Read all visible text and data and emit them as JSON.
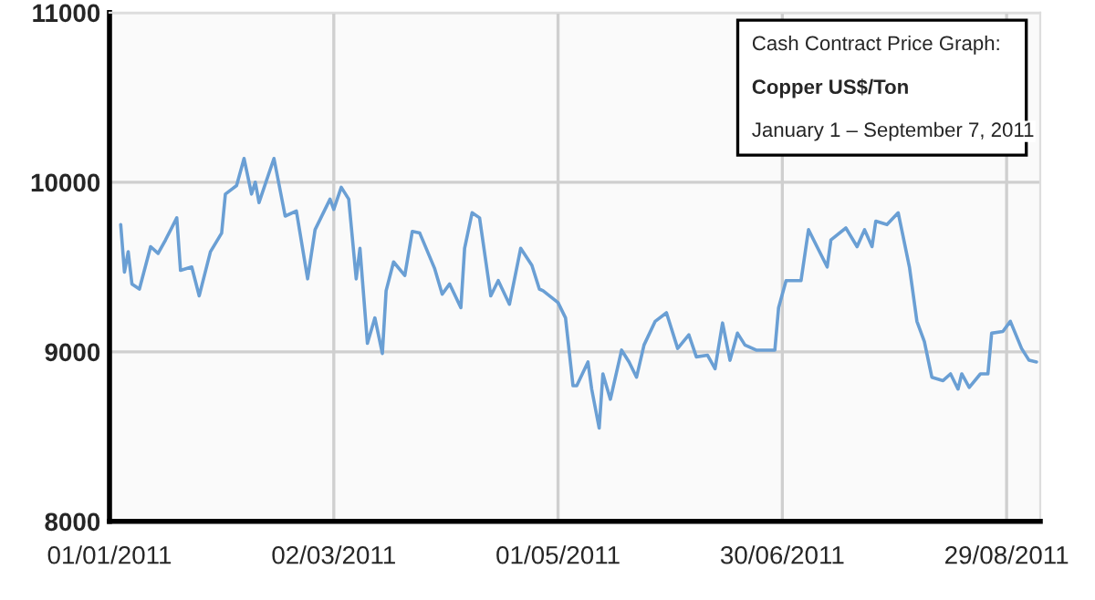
{
  "chart_data": {
    "type": "line",
    "annotations": [
      "Cash Contract Price Graph:",
      "Copper US$/Ton",
      "January 1 – September 7, 2011"
    ],
    "x": [
      "2011-01-04",
      "2011-01-05",
      "2011-01-06",
      "2011-01-07",
      "2011-01-09",
      "2011-01-12",
      "2011-01-14",
      "2011-01-16",
      "2011-01-19",
      "2011-01-20",
      "2011-01-23",
      "2011-01-25",
      "2011-01-28",
      "2011-01-31",
      "2011-02-01",
      "2011-02-04",
      "2011-02-06",
      "2011-02-08",
      "2011-02-09",
      "2011-02-10",
      "2011-02-14",
      "2011-02-17",
      "2011-02-20",
      "2011-02-23",
      "2011-02-25",
      "2011-03-01",
      "2011-03-02",
      "2011-03-04",
      "2011-03-06",
      "2011-03-08",
      "2011-03-09",
      "2011-03-11",
      "2011-03-13",
      "2011-03-15",
      "2011-03-16",
      "2011-03-18",
      "2011-03-21",
      "2011-03-23",
      "2011-03-25",
      "2011-03-29",
      "2011-03-31",
      "2011-04-02",
      "2011-04-05",
      "2011-04-06",
      "2011-04-08",
      "2011-04-10",
      "2011-04-13",
      "2011-04-15",
      "2011-04-18",
      "2011-04-21",
      "2011-04-24",
      "2011-04-26",
      "2011-04-27",
      "2011-05-01",
      "2011-05-03",
      "2011-05-05",
      "2011-05-06",
      "2011-05-09",
      "2011-05-10",
      "2011-05-12",
      "2011-05-13",
      "2011-05-15",
      "2011-05-18",
      "2011-05-20",
      "2011-05-22",
      "2011-05-24",
      "2011-05-27",
      "2011-05-30",
      "2011-06-02",
      "2011-06-05",
      "2011-06-07",
      "2011-06-10",
      "2011-06-12",
      "2011-06-14",
      "2011-06-16",
      "2011-06-18",
      "2011-06-20",
      "2011-06-23",
      "2011-06-26",
      "2011-06-28",
      "2011-06-29",
      "2011-07-01",
      "2011-07-05",
      "2011-07-07",
      "2011-07-12",
      "2011-07-13",
      "2011-07-17",
      "2011-07-20",
      "2011-07-22",
      "2011-07-24",
      "2011-07-25",
      "2011-07-28",
      "2011-07-31",
      "2011-08-03",
      "2011-08-05",
      "2011-08-07",
      "2011-08-09",
      "2011-08-12",
      "2011-08-14",
      "2011-08-16",
      "2011-08-17",
      "2011-08-19",
      "2011-08-22",
      "2011-08-24",
      "2011-08-25",
      "2011-08-28",
      "2011-08-30",
      "2011-09-02",
      "2011-09-04",
      "2011-09-06"
    ],
    "series": [
      {
        "color": "#6a9fd4",
        "values": [
          9750,
          9470,
          9590,
          9400,
          9370,
          9620,
          9580,
          9660,
          9790,
          9480,
          9500,
          9330,
          9590,
          9700,
          9930,
          9980,
          10140,
          9930,
          10000,
          9880,
          10140,
          9800,
          9830,
          9430,
          9720,
          9900,
          9840,
          9970,
          9900,
          9430,
          9610,
          9050,
          9200,
          8990,
          9360,
          9530,
          9450,
          9710,
          9700,
          9490,
          9340,
          9400,
          9260,
          9610,
          9820,
          9790,
          9330,
          9420,
          9280,
          9610,
          9510,
          9370,
          9360,
          9290,
          9200,
          8800,
          8800,
          8940,
          8780,
          8550,
          8870,
          8720,
          9010,
          8940,
          8850,
          9040,
          9180,
          9230,
          9020,
          9100,
          8970,
          8980,
          8900,
          9170,
          8950,
          9110,
          9040,
          9010,
          9010,
          9010,
          9260,
          9420,
          9420,
          9720,
          9500,
          9660,
          9730,
          9620,
          9720,
          9620,
          9770,
          9750,
          9820,
          9500,
          9180,
          9060,
          8850,
          8830,
          8870,
          8780,
          8870,
          8790,
          8870,
          8870,
          9110,
          9120,
          9180,
          9020,
          8950,
          8940
        ]
      }
    ],
    "xlim": [
      "2011-01-01",
      "2011-09-07"
    ],
    "xticks": [
      {
        "value": "2011-01-01",
        "label": "01/01/2011"
      },
      {
        "value": "2011-03-02",
        "label": "02/03/2011"
      },
      {
        "value": "2011-05-01",
        "label": "01/05/2011"
      },
      {
        "value": "2011-06-30",
        "label": "30/06/2011"
      },
      {
        "value": "2011-08-29",
        "label": "29/08/2011"
      }
    ],
    "ylim": [
      8000,
      11000
    ],
    "yticks": [
      8000,
      9000,
      10000,
      11000
    ],
    "grid": true,
    "legend": false,
    "marker": "none",
    "line_style": "solid"
  }
}
